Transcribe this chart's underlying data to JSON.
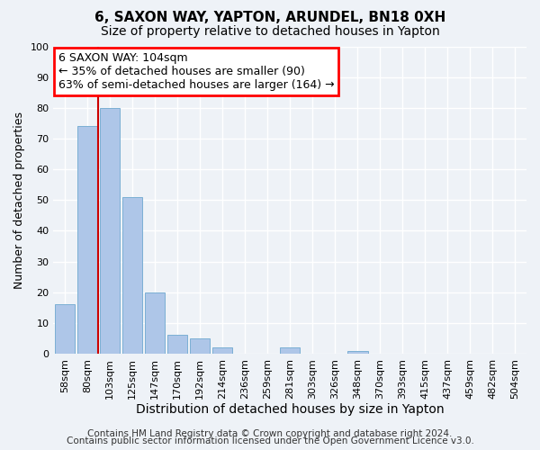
{
  "title": "6, SAXON WAY, YAPTON, ARUNDEL, BN18 0XH",
  "subtitle": "Size of property relative to detached houses in Yapton",
  "xlabel": "Distribution of detached houses by size in Yapton",
  "ylabel": "Number of detached properties",
  "bar_labels": [
    "58sqm",
    "80sqm",
    "103sqm",
    "125sqm",
    "147sqm",
    "170sqm",
    "192sqm",
    "214sqm",
    "236sqm",
    "259sqm",
    "281sqm",
    "303sqm",
    "326sqm",
    "348sqm",
    "370sqm",
    "393sqm",
    "415sqm",
    "437sqm",
    "459sqm",
    "482sqm",
    "504sqm"
  ],
  "bar_values": [
    16,
    74,
    80,
    51,
    20,
    6,
    5,
    2,
    0,
    0,
    2,
    0,
    0,
    1,
    0,
    0,
    0,
    0,
    0,
    0,
    0
  ],
  "bar_color": "#aec6e8",
  "bar_edgecolor": "#7bafd4",
  "property_line_x": 1.5,
  "property_line_color": "#cc0000",
  "ylim": [
    0,
    100
  ],
  "yticks": [
    0,
    10,
    20,
    30,
    40,
    50,
    60,
    70,
    80,
    90,
    100
  ],
  "annotation_line1": "6 SAXON WAY: 104sqm",
  "annotation_line2": "← 35% of detached houses are smaller (90)",
  "annotation_line3": "63% of semi-detached houses are larger (164) →",
  "footer_line1": "Contains HM Land Registry data © Crown copyright and database right 2024.",
  "footer_line2": "Contains public sector information licensed under the Open Government Licence v3.0.",
  "background_color": "#eef2f7",
  "grid_color": "#ffffff",
  "title_fontsize": 11,
  "subtitle_fontsize": 10,
  "xlabel_fontsize": 10,
  "ylabel_fontsize": 9,
  "tick_fontsize": 8,
  "annotation_fontsize": 9,
  "footer_fontsize": 7.5
}
